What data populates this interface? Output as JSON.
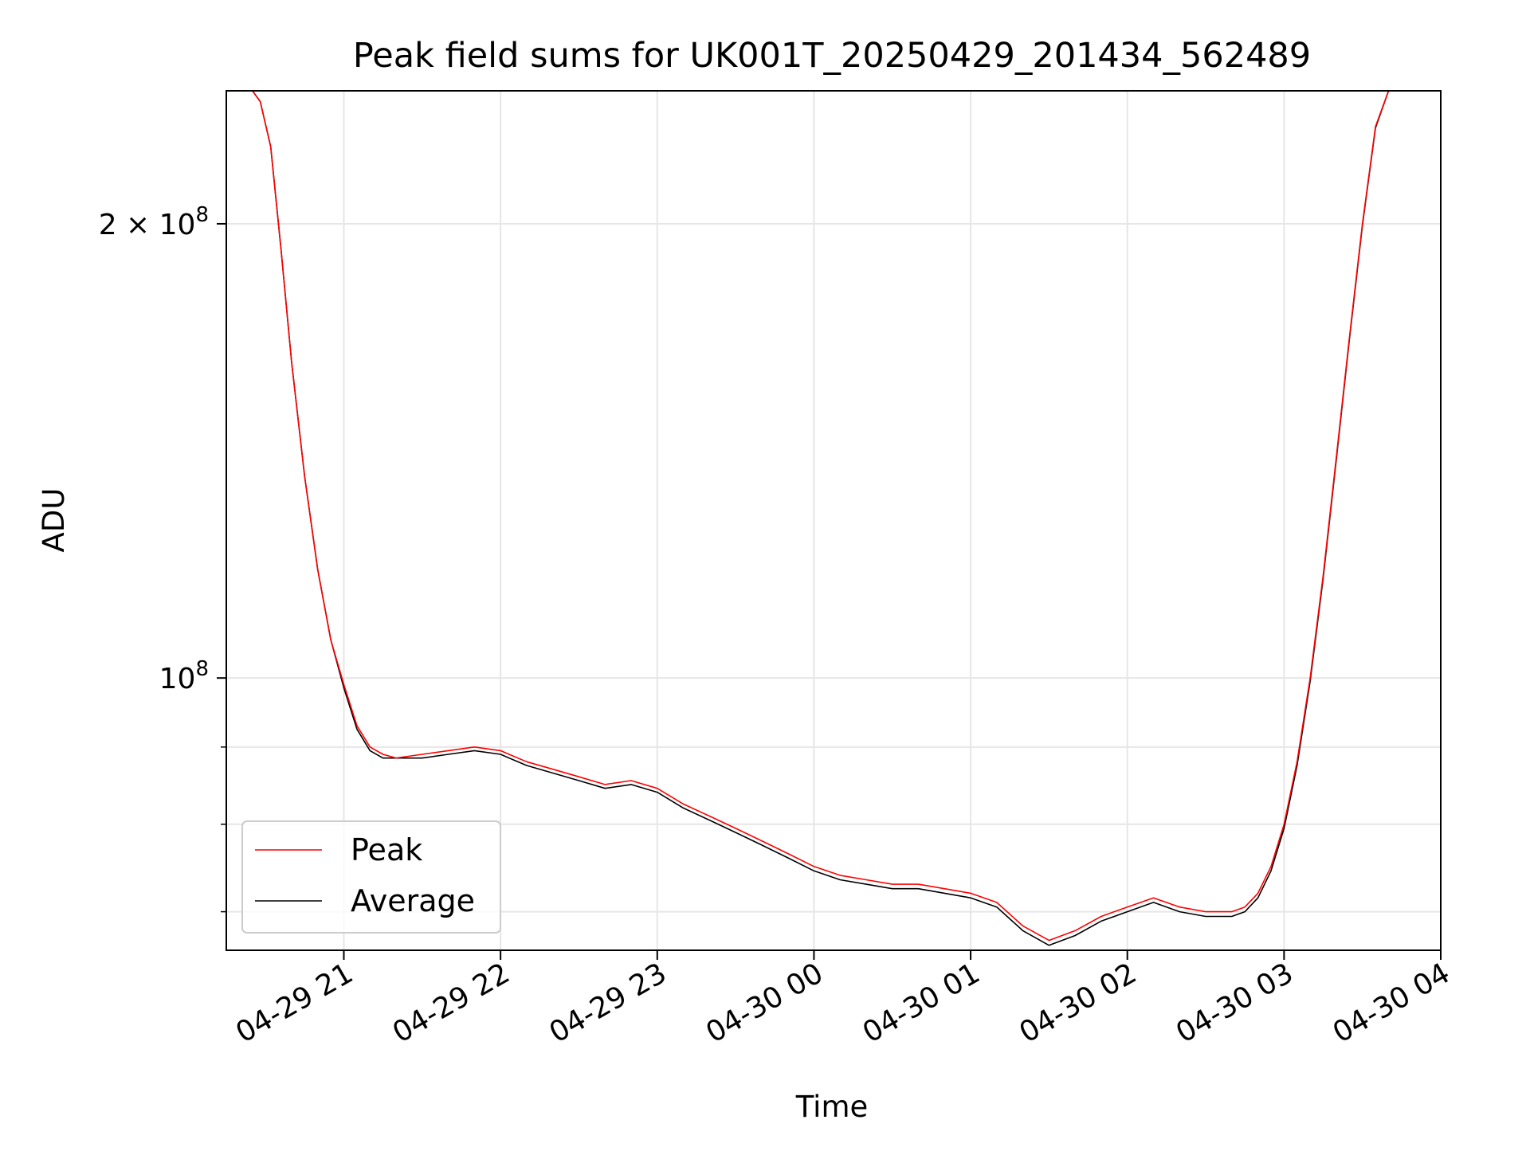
{
  "chart_data": {
    "type": "line",
    "title": "Peak field sums for UK001T_20250429_201434_562489",
    "xlabel": "Time",
    "ylabel": "ADU",
    "yscale": "log",
    "grid": true,
    "legend_position": "lower-left",
    "xlim": [
      "2025-04-29T20:15",
      "2025-04-30T04:00"
    ],
    "ylim": [
      66000000,
      245000000
    ],
    "x_ticks": [
      {
        "value": "2025-04-29T21:00",
        "label": "04-29 21"
      },
      {
        "value": "2025-04-29T22:00",
        "label": "04-29 22"
      },
      {
        "value": "2025-04-29T23:00",
        "label": "04-29 23"
      },
      {
        "value": "2025-04-30T00:00",
        "label": "04-30 00"
      },
      {
        "value": "2025-04-30T01:00",
        "label": "04-30 01"
      },
      {
        "value": "2025-04-30T02:00",
        "label": "04-30 02"
      },
      {
        "value": "2025-04-30T03:00",
        "label": "04-30 03"
      },
      {
        "value": "2025-04-30T04:00",
        "label": "04-30 04"
      }
    ],
    "y_major_ticks": [
      {
        "value": 100000000,
        "label": "10",
        "exp": "8"
      },
      {
        "value": 200000000,
        "label": "2 × 10",
        "exp": "8"
      }
    ],
    "y_minor_ticks": [
      70000000,
      80000000,
      90000000
    ],
    "series": [
      {
        "name": "Peak",
        "color": "#ff0000",
        "x": [
          "2025-04-29T20:15",
          "2025-04-29T20:20",
          "2025-04-29T20:25",
          "2025-04-29T20:28",
          "2025-04-29T20:32",
          "2025-04-29T20:36",
          "2025-04-29T20:40",
          "2025-04-29T20:45",
          "2025-04-29T20:50",
          "2025-04-29T20:55",
          "2025-04-29T21:00",
          "2025-04-29T21:05",
          "2025-04-29T21:10",
          "2025-04-29T21:15",
          "2025-04-29T21:20",
          "2025-04-29T21:30",
          "2025-04-29T21:40",
          "2025-04-29T21:50",
          "2025-04-29T22:00",
          "2025-04-29T22:10",
          "2025-04-29T22:20",
          "2025-04-29T22:30",
          "2025-04-29T22:40",
          "2025-04-29T22:50",
          "2025-04-29T23:00",
          "2025-04-29T23:10",
          "2025-04-29T23:20",
          "2025-04-29T23:30",
          "2025-04-29T23:40",
          "2025-04-29T23:50",
          "2025-04-30T00:00",
          "2025-04-30T00:10",
          "2025-04-30T00:20",
          "2025-04-30T00:30",
          "2025-04-30T00:40",
          "2025-04-30T00:50",
          "2025-04-30T01:00",
          "2025-04-30T01:10",
          "2025-04-30T01:20",
          "2025-04-30T01:30",
          "2025-04-30T01:40",
          "2025-04-30T01:50",
          "2025-04-30T02:00",
          "2025-04-30T02:10",
          "2025-04-30T02:20",
          "2025-04-30T02:30",
          "2025-04-30T02:40",
          "2025-04-30T02:45",
          "2025-04-30T02:50",
          "2025-04-30T02:55",
          "2025-04-30T03:00",
          "2025-04-30T03:05",
          "2025-04-30T03:10",
          "2025-04-30T03:15",
          "2025-04-30T03:20",
          "2025-04-30T03:25",
          "2025-04-30T03:30",
          "2025-04-30T03:35",
          "2025-04-30T03:40"
        ],
        "y": [
          245000000,
          245000000,
          245000000,
          241000000,
          225000000,
          192000000,
          162000000,
          136000000,
          118000000,
          106000000,
          99000000,
          93000000,
          90000000,
          89000000,
          88500000,
          89000000,
          89500000,
          90000000,
          89500000,
          88000000,
          87000000,
          86000000,
          85000000,
          85500000,
          84500000,
          82500000,
          81000000,
          79500000,
          78000000,
          76500000,
          75000000,
          74000000,
          73500000,
          73000000,
          73000000,
          72500000,
          72000000,
          71000000,
          68500000,
          67000000,
          68000000,
          69500000,
          70500000,
          71500000,
          70500000,
          70000000,
          70000000,
          70500000,
          72000000,
          75000000,
          80000000,
          88000000,
          100000000,
          117000000,
          140000000,
          168000000,
          200000000,
          232000000,
          245000000
        ]
      },
      {
        "name": "Average",
        "color": "#000000",
        "x": [
          "2025-04-29T20:15",
          "2025-04-29T20:20",
          "2025-04-29T20:25",
          "2025-04-29T20:28",
          "2025-04-29T20:32",
          "2025-04-29T20:36",
          "2025-04-29T20:40",
          "2025-04-29T20:45",
          "2025-04-29T20:50",
          "2025-04-29T20:55",
          "2025-04-29T21:00",
          "2025-04-29T21:05",
          "2025-04-29T21:10",
          "2025-04-29T21:15",
          "2025-04-29T21:20",
          "2025-04-29T21:30",
          "2025-04-29T21:40",
          "2025-04-29T21:50",
          "2025-04-29T22:00",
          "2025-04-29T22:10",
          "2025-04-29T22:20",
          "2025-04-29T22:30",
          "2025-04-29T22:40",
          "2025-04-29T22:50",
          "2025-04-29T23:00",
          "2025-04-29T23:10",
          "2025-04-29T23:20",
          "2025-04-29T23:30",
          "2025-04-29T23:40",
          "2025-04-29T23:50",
          "2025-04-30T00:00",
          "2025-04-30T00:10",
          "2025-04-30T00:20",
          "2025-04-30T00:30",
          "2025-04-30T00:40",
          "2025-04-30T00:50",
          "2025-04-30T01:00",
          "2025-04-30T01:10",
          "2025-04-30T01:20",
          "2025-04-30T01:30",
          "2025-04-30T01:40",
          "2025-04-30T01:50",
          "2025-04-30T02:00",
          "2025-04-30T02:10",
          "2025-04-30T02:20",
          "2025-04-30T02:30",
          "2025-04-30T02:40",
          "2025-04-30T02:45",
          "2025-04-30T02:50",
          "2025-04-30T02:55",
          "2025-04-30T03:00",
          "2025-04-30T03:05",
          "2025-04-30T03:10",
          "2025-04-30T03:15",
          "2025-04-30T03:20",
          "2025-04-30T03:25",
          "2025-04-30T03:30",
          "2025-04-30T03:35",
          "2025-04-30T03:40"
        ],
        "y": [
          245000000,
          245000000,
          245000000,
          241000000,
          225000000,
          192000000,
          162000000,
          136000000,
          118000000,
          106000000,
          98500000,
          92500000,
          89500000,
          88500000,
          88500000,
          88500000,
          89000000,
          89500000,
          89000000,
          87500000,
          86500000,
          85500000,
          84500000,
          85000000,
          84000000,
          82000000,
          80500000,
          79000000,
          77500000,
          76000000,
          74500000,
          73500000,
          73000000,
          72500000,
          72500000,
          72000000,
          71500000,
          70500000,
          68000000,
          66500000,
          67500000,
          69000000,
          70000000,
          71000000,
          70000000,
          69500000,
          69500000,
          70000000,
          71500000,
          74500000,
          79500000,
          87500000,
          99500000,
          116500000,
          139500000,
          167500000,
          199500000,
          231500000,
          245000000
        ]
      }
    ]
  }
}
